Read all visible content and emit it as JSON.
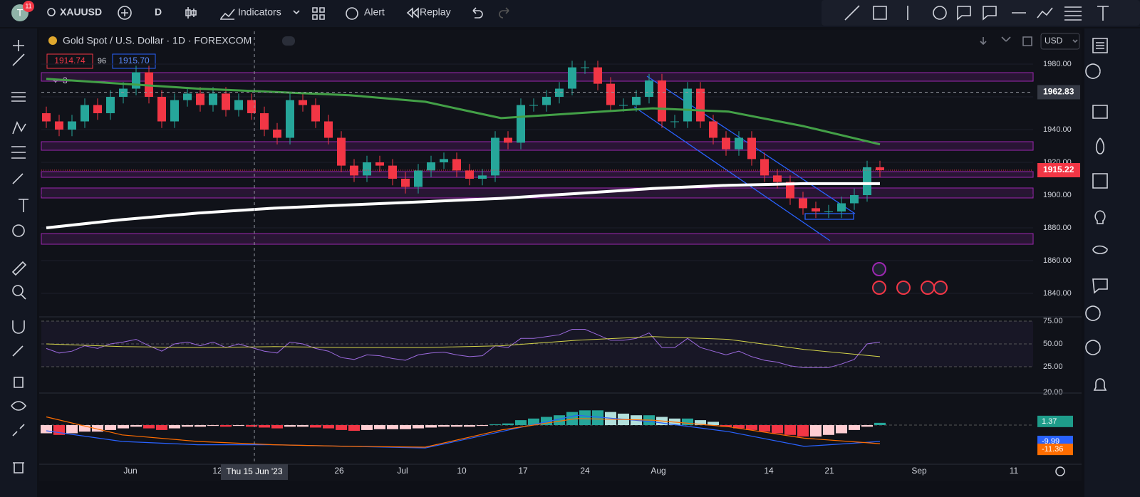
{
  "header": {
    "avatar": "T",
    "badge": "11",
    "symbol": "XAUUSD",
    "interval": "D",
    "indicators": "Indicators",
    "alert": "Alert",
    "replay": "Replay"
  },
  "legend": {
    "title": "Gold Spot / U.S. Dollar · 1D · FOREXCOM",
    "bid": "1914.74",
    "spread": "96",
    "ask": "1915.70",
    "count": "3"
  },
  "currency": "USD",
  "price_axis": {
    "ticks": [
      {
        "value": 1980,
        "label": "1980.00"
      },
      {
        "value": 1960,
        "label": "1960.00"
      },
      {
        "value": 1940,
        "label": "1940.00"
      },
      {
        "value": 1920,
        "label": "1920.00"
      },
      {
        "value": 1900,
        "label": "1900.00"
      },
      {
        "value": 1880,
        "label": "1880.00"
      },
      {
        "value": 1860,
        "label": "1860.00"
      },
      {
        "value": 1840,
        "label": "1840.00"
      }
    ],
    "crosshair": {
      "value": 1962.83,
      "label": "1962.83"
    },
    "last": {
      "value": 1915.22,
      "label": "1915.22"
    }
  },
  "candles": {
    "open": [
      1950,
      1945,
      1940,
      1945,
      1955,
      1950,
      1960,
      1965,
      1975,
      1960,
      1945,
      1958,
      1962,
      1955,
      1962,
      1952,
      1958,
      1950,
      1940,
      1935,
      1958,
      1955,
      1945,
      1935,
      1918,
      1912,
      1920,
      1918,
      1910,
      1905,
      1915,
      1920,
      1922,
      1915,
      1910,
      1912,
      1935,
      1932,
      1955,
      1955,
      1960,
      1965,
      1978,
      1978,
      1968,
      1955,
      1955,
      1960,
      1970,
      1945,
      1945,
      1965,
      1945,
      1935,
      1928,
      1935,
      1922,
      1912,
      1908,
      1898,
      1892,
      1890,
      1890,
      1895,
      1900,
      1917
    ],
    "high": [
      1954,
      1949,
      1949,
      1959,
      1959,
      1964,
      1969,
      1979,
      1979,
      1964,
      1962,
      1966,
      1966,
      1966,
      1966,
      1962,
      1962,
      1954,
      1944,
      1962,
      1962,
      1959,
      1949,
      1939,
      1922,
      1924,
      1924,
      1922,
      1914,
      1919,
      1924,
      1926,
      1926,
      1919,
      1916,
      1939,
      1939,
      1959,
      1959,
      1964,
      1969,
      1982,
      1982,
      1982,
      1972,
      1959,
      1964,
      1974,
      1974,
      1949,
      1969,
      1969,
      1949,
      1939,
      1939,
      1939,
      1926,
      1916,
      1912,
      1902,
      1896,
      1894,
      1899,
      1904,
      1921,
      1921
    ],
    "low": [
      1941,
      1936,
      1936,
      1941,
      1946,
      1946,
      1956,
      1961,
      1956,
      1941,
      1941,
      1954,
      1951,
      1951,
      1948,
      1948,
      1946,
      1936,
      1931,
      1931,
      1951,
      1941,
      1931,
      1914,
      1908,
      1908,
      1914,
      1906,
      1901,
      1901,
      1911,
      1916,
      1911,
      1906,
      1906,
      1908,
      1928,
      1928,
      1951,
      1951,
      1956,
      1961,
      1974,
      1964,
      1951,
      1951,
      1951,
      1956,
      1941,
      1941,
      1941,
      1941,
      1931,
      1924,
      1924,
      1918,
      1908,
      1904,
      1894,
      1888,
      1886,
      1886,
      1886,
      1891,
      1896,
      1911
    ],
    "close": [
      1945,
      1940,
      1945,
      1955,
      1950,
      1960,
      1965,
      1975,
      1960,
      1945,
      1958,
      1962,
      1955,
      1962,
      1952,
      1958,
      1950,
      1940,
      1935,
      1958,
      1955,
      1945,
      1935,
      1918,
      1912,
      1920,
      1918,
      1910,
      1905,
      1915,
      1920,
      1922,
      1915,
      1910,
      1912,
      1935,
      1932,
      1955,
      1955,
      1960,
      1965,
      1978,
      1978,
      1968,
      1955,
      1955,
      1960,
      1970,
      1945,
      1945,
      1965,
      1945,
      1935,
      1928,
      1935,
      1922,
      1912,
      1908,
      1898,
      1892,
      1890,
      1890,
      1895,
      1900,
      1917,
      1915.22
    ]
  },
  "ma50": [
    1971,
    1968,
    1965,
    1963,
    1961,
    1957,
    1947,
    1950,
    1953,
    1951,
    1942,
    1931
  ],
  "ma200": [
    1880,
    1885,
    1889,
    1892,
    1894,
    1896,
    1898,
    1901,
    1904,
    1906,
    1907,
    1907
  ],
  "rsi": {
    "values": [
      45,
      40,
      42,
      48,
      45,
      50,
      52,
      55,
      48,
      42,
      50,
      52,
      48,
      52,
      46,
      50,
      46,
      42,
      40,
      52,
      50,
      45,
      42,
      35,
      33,
      38,
      37,
      34,
      32,
      38,
      40,
      41,
      38,
      36,
      37,
      48,
      46,
      56,
      56,
      58,
      60,
      66,
      66,
      60,
      54,
      54,
      56,
      62,
      46,
      46,
      56,
      46,
      42,
      38,
      42,
      36,
      32,
      30,
      26,
      24,
      24,
      24,
      28,
      33,
      50,
      52
    ],
    "ma": [
      50,
      47,
      46,
      47,
      46,
      46,
      48,
      54,
      58,
      55,
      44,
      36
    ],
    "ticks": [
      {
        "value": 75,
        "label": "75.00"
      },
      {
        "value": 50,
        "label": "50.00"
      },
      {
        "value": 25,
        "label": "25.00"
      }
    ]
  },
  "macd": {
    "hist": [
      -5,
      -6,
      -5,
      -4,
      -4,
      -3,
      -2,
      -1,
      -2,
      -3,
      -2,
      -1,
      -1,
      -0.5,
      -1,
      -0.5,
      -1,
      -1.5,
      -2,
      -1,
      -1,
      -1.5,
      -2,
      -3,
      -3.5,
      -3,
      -2.5,
      -2.5,
      -2.5,
      -2,
      -1.5,
      -1,
      -1,
      -1,
      -0.5,
      0.5,
      1,
      3,
      4,
      5,
      6,
      8,
      9,
      9,
      8,
      7,
      6,
      6,
      5,
      4,
      4,
      3,
      2,
      -1,
      -2,
      -3,
      -4,
      -5,
      -6,
      -7,
      -7,
      -6,
      -5,
      -3,
      -1,
      1.37
    ],
    "macd": [
      -3.5,
      -10,
      -12,
      -12,
      -13,
      -14,
      -4,
      6,
      2,
      -4,
      -13,
      -9.99
    ],
    "signal": [
      5,
      -6,
      -10,
      -12,
      -13,
      -13.5,
      -3,
      4,
      3,
      -1,
      -8,
      -11.36
    ],
    "ticks": [
      {
        "value": 20,
        "label": "20.00"
      }
    ],
    "tags": [
      {
        "value": 1.37,
        "label": "1.37"
      },
      {
        "value": -9.99,
        "label": "-9.99"
      },
      {
        "value": -11.36,
        "label": "-11.36"
      }
    ]
  },
  "time_axis": {
    "labels": [
      "Jun",
      "12",
      "26",
      "Jul",
      "10",
      "17",
      "24",
      "Aug",
      "14",
      "21",
      "Sep",
      "11"
    ],
    "crosshair": "Thu 15 Jun '23"
  }
}
